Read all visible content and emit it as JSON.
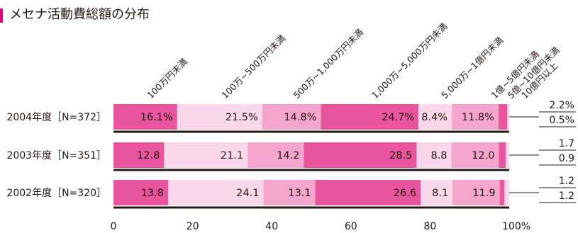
{
  "title": "メセナ活動費総額の分布",
  "chart_data": {
    "type": "bar",
    "stacked": true,
    "orientation": "horizontal",
    "categories": [
      "100万円未満",
      "100万~500万円未満",
      "500万~1,000万円未満",
      "1,000万~5,000万円未満",
      "5,000万~1億円未満",
      "1億~5億円未満",
      "5億~10億円未満",
      "10億円以上"
    ],
    "rows": [
      {
        "label": "2004年度［N=372］",
        "values": [
          16.1,
          21.5,
          14.8,
          24.7,
          8.4,
          11.8,
          2.2,
          0.5
        ],
        "labels": [
          "16.1%",
          "21.5%",
          "14.8%",
          "24.7%",
          "8.4%",
          "11.8%",
          "2.2%",
          "0.5%"
        ]
      },
      {
        "label": "2003年度［N=351］",
        "values": [
          12.8,
          21.1,
          14.2,
          28.5,
          8.8,
          12.0,
          1.7,
          0.9
        ],
        "labels": [
          "12.8",
          "21.1",
          "14.2",
          "28.5",
          "8.8",
          "12.0",
          "1.7",
          "0.9"
        ]
      },
      {
        "label": "2002年度［N=320］",
        "values": [
          13.8,
          24.1,
          13.1,
          26.6,
          8.1,
          11.9,
          1.2,
          1.2
        ],
        "labels": [
          "13.8",
          "24.1",
          "13.1",
          "26.6",
          "8.1",
          "11.9",
          "1.2",
          "1.2"
        ]
      }
    ],
    "x_ticks": [
      "0",
      "20",
      "40",
      "60",
      "80",
      "100%"
    ],
    "xlim": [
      0,
      100
    ],
    "colors": [
      "#e9559c",
      "#fbd7ea",
      "#f4a5cb",
      "#e9559c",
      "#fbd7ea",
      "#f4a5cb",
      "#e9559c",
      "#fbd7ea"
    ]
  }
}
